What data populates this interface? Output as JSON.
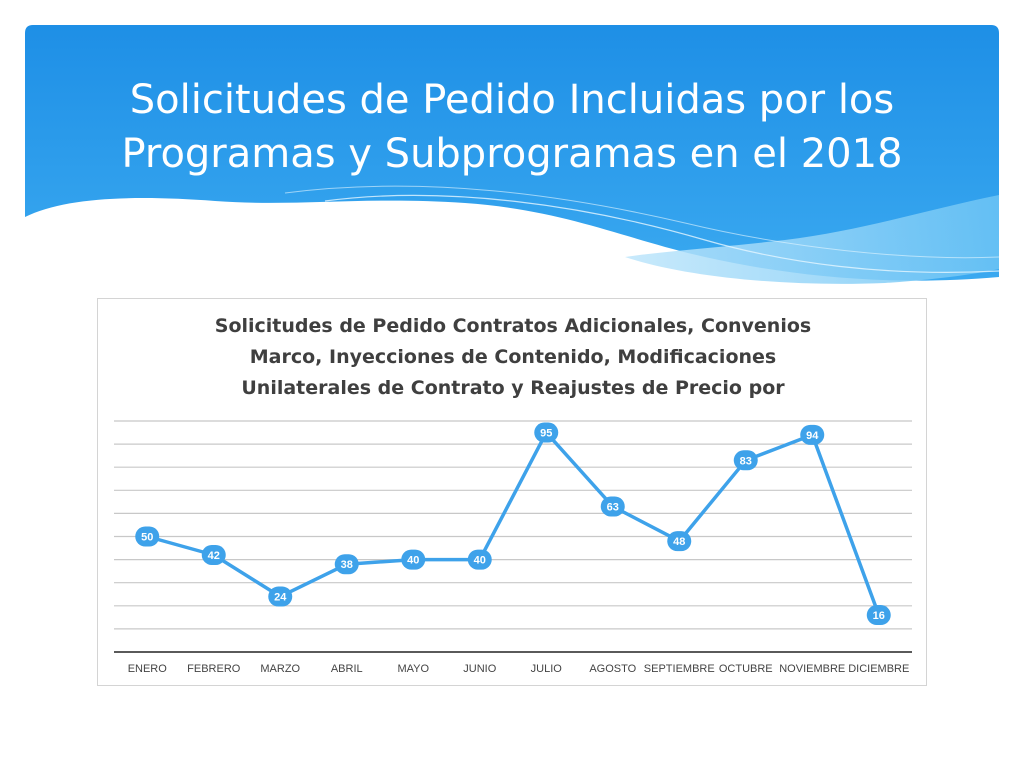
{
  "slide": {
    "title_line1": "Solicitudes de Pedido Incluidas por los",
    "title_line2": "Programas y Subprogramas en el 2018"
  },
  "colors": {
    "header_blue": "#1e90e8",
    "header_light": "#8fd0f7",
    "series_line": "#3ea2ea",
    "grid": "#c8c8c8",
    "label_text": "#ffffff"
  },
  "chart_data": {
    "type": "line",
    "title_line1": "Solicitudes de Pedido Contratos Adicionales, Convenios",
    "title_line2": "Marco, Inyecciones de Contenido, Modificaciones",
    "title_line3": "Unilaterales de Contrato y Reajustes de Precio por",
    "categories": [
      "ENERO",
      "FEBRERO",
      "MARZO",
      "ABRIL",
      "MAYO",
      "JUNIO",
      "JULIO",
      "AGOSTO",
      "SEPTIEMBRE",
      "OCTUBRE",
      "NOVIEMBRE",
      "DICIEMBRE"
    ],
    "series": [
      {
        "values": [
          50,
          42,
          24,
          38,
          40,
          40,
          95,
          63,
          48,
          83,
          94,
          16
        ]
      }
    ],
    "ylim": [
      0,
      100
    ],
    "grid": true,
    "legend": "none",
    "data_labels": true
  }
}
